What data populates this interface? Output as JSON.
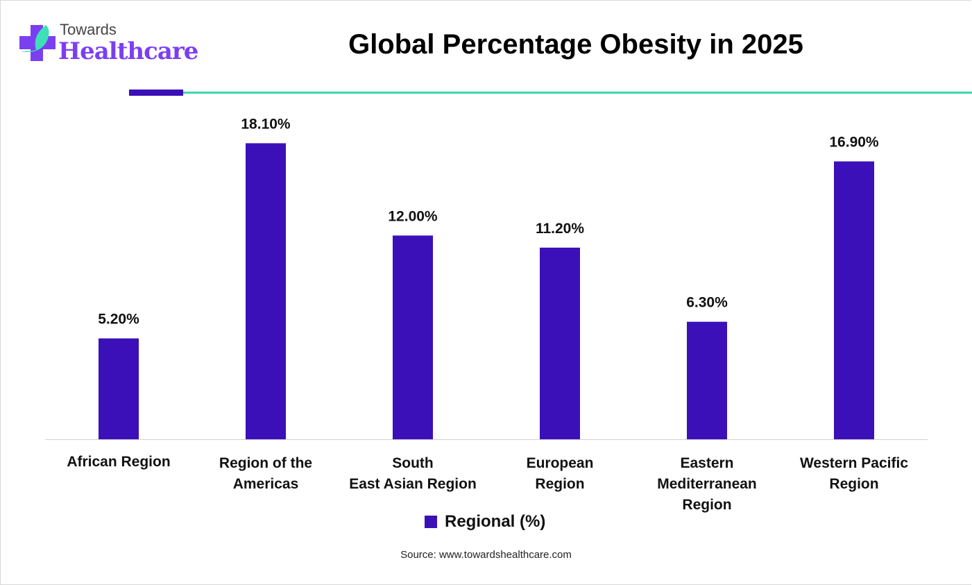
{
  "brand": {
    "line1": "Towards",
    "line2": "Healthcare",
    "colors": {
      "cross": "#7b3ff2",
      "leaf": "#3ee0b8"
    }
  },
  "chart_data": {
    "type": "bar",
    "title": "Global Percentage Obesity in 2025",
    "categories": [
      [
        "African Region"
      ],
      [
        "Region of the",
        "Americas"
      ],
      [
        "South",
        "East Asian Region"
      ],
      [
        "European",
        "Region"
      ],
      [
        "Eastern",
        "Mediterranean",
        "Region"
      ],
      [
        "Western Pacific",
        "Region"
      ]
    ],
    "series": [
      {
        "name": "Regional (%)",
        "values": [
          5.2,
          18.1,
          12.0,
          11.2,
          6.3,
          16.9
        ],
        "labels": [
          "5.20%",
          "18.10%",
          "12.00%",
          "11.20%",
          "6.30%",
          "16.90%"
        ],
        "color": "#3b10b8"
      }
    ],
    "xlabel": "",
    "ylabel": "",
    "grid": false,
    "legend": "bottom-center"
  },
  "source": "Source: www.towardshealthcare.com",
  "colors": {
    "accent_bar": "#3b10b8",
    "accent_line": "#3ed8b0"
  }
}
